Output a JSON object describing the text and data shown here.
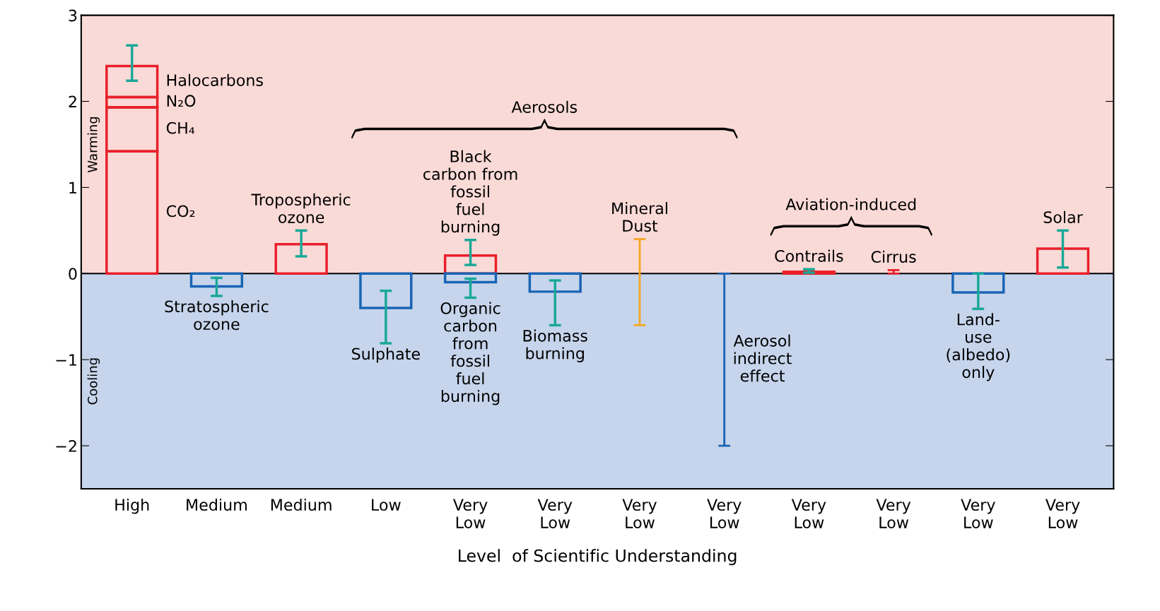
{
  "chart_data": {
    "type": "bar",
    "stacked": true,
    "xlabel": "Level  of Scientific Understanding",
    "categories": [
      "High",
      "Medium",
      "Medium",
      "Low",
      "Very\nLow",
      "Very\nLow",
      "Very\nLow",
      "Very\nLow",
      "Very\nLow",
      "Very\nLow",
      "Very\nLow",
      "Very\nLow"
    ],
    "series": [
      {
        "name": "CO₂",
        "color": "#e8202a",
        "values": [
          1.42,
          null,
          null,
          null,
          null,
          null,
          null,
          null,
          null,
          null,
          null,
          null
        ]
      },
      {
        "name": "CH₄",
        "color": "#e8202a",
        "values": [
          0.51,
          null,
          null,
          null,
          null,
          null,
          null,
          null,
          null,
          null,
          null,
          null
        ]
      },
      {
        "name": "N₂O",
        "color": "#e8202a",
        "values": [
          0.12,
          null,
          null,
          null,
          null,
          null,
          null,
          null,
          null,
          null,
          null,
          null
        ]
      },
      {
        "name": "Halocarbons",
        "color": "#e8202a",
        "values": [
          0.36,
          null,
          null,
          null,
          null,
          null,
          null,
          null,
          null,
          null,
          null,
          null
        ],
        "errors": [
          [
            2.24,
            2.65
          ],
          null,
          null,
          null,
          null,
          null,
          null,
          null,
          null,
          null,
          null,
          null
        ]
      },
      {
        "name": "Stratospheric\nozone",
        "color": "#1a64b4",
        "values": [
          null,
          -0.15,
          null,
          null,
          null,
          null,
          null,
          null,
          null,
          null,
          null,
          null
        ],
        "errors": [
          null,
          [
            -0.26,
            -0.05
          ],
          null,
          null,
          null,
          null,
          null,
          null,
          null,
          null,
          null,
          null
        ]
      },
      {
        "name": "Tropospheric\nozone",
        "color": "#e8202a",
        "values": [
          null,
          null,
          0.34,
          null,
          null,
          null,
          null,
          null,
          null,
          null,
          null,
          null
        ],
        "errors": [
          null,
          null,
          [
            0.2,
            0.5
          ],
          null,
          null,
          null,
          null,
          null,
          null,
          null,
          null,
          null
        ]
      },
      {
        "name": "Sulphate",
        "color": "#1a64b4",
        "values": [
          null,
          null,
          null,
          -0.4,
          null,
          null,
          null,
          null,
          null,
          null,
          null,
          null
        ],
        "errors": [
          null,
          null,
          null,
          [
            -0.81,
            -0.2
          ],
          null,
          null,
          null,
          null,
          null,
          null,
          null,
          null
        ]
      },
      {
        "name": "Black\ncarbon from\nfossil\nfuel\nburning",
        "color": "#e8202a",
        "values": [
          null,
          null,
          null,
          null,
          0.21,
          null,
          null,
          null,
          null,
          null,
          null,
          null
        ],
        "errors": [
          null,
          null,
          null,
          null,
          [
            0.1,
            0.39
          ],
          null,
          null,
          null,
          null,
          null,
          null,
          null
        ]
      },
      {
        "name": "Organic\ncarbon\nfrom\nfossil\nfuel\nburning",
        "color": "#1a64b4",
        "values": [
          null,
          null,
          null,
          null,
          -0.1,
          null,
          null,
          null,
          null,
          null,
          null,
          null
        ],
        "errors": [
          null,
          null,
          null,
          null,
          [
            -0.28,
            -0.06
          ],
          null,
          null,
          null,
          null,
          null,
          null,
          null
        ]
      },
      {
        "name": "Biomass\nburning",
        "color": "#1a64b4",
        "values": [
          null,
          null,
          null,
          null,
          null,
          -0.21,
          null,
          null,
          null,
          null,
          null,
          null
        ],
        "errors": [
          null,
          null,
          null,
          null,
          null,
          [
            -0.6,
            -0.08
          ],
          null,
          null,
          null,
          null,
          null,
          null
        ]
      },
      {
        "name": "Mineral\nDust",
        "color": "#f5a623",
        "base": [
          null,
          null,
          null,
          null,
          null,
          null,
          -0.6,
          null,
          null,
          null,
          null,
          null
        ],
        "values": [
          null,
          null,
          null,
          null,
          null,
          null,
          1.0,
          null,
          null,
          null,
          null,
          null
        ]
      },
      {
        "name": "Aerosol\nindirect\neffect",
        "color": "#1a64b4",
        "base": [
          null,
          null,
          null,
          null,
          null,
          null,
          null,
          -2,
          null,
          null,
          null,
          null
        ],
        "values": [
          null,
          null,
          null,
          null,
          null,
          null,
          null,
          2,
          null,
          null,
          null,
          null
        ]
      },
      {
        "name": "Contrails",
        "color": "#e8202a",
        "values": [
          null,
          null,
          null,
          null,
          null,
          null,
          null,
          null,
          0.02,
          null,
          null,
          null
        ],
        "errors": [
          null,
          null,
          null,
          null,
          null,
          null,
          null,
          null,
          [
            0.01,
            0.05
          ],
          null,
          null,
          null
        ]
      },
      {
        "name": "Cirrus",
        "color": "#e8202a",
        "base": [
          null,
          null,
          null,
          null,
          null,
          null,
          null,
          null,
          null,
          0,
          null,
          null
        ],
        "values": [
          null,
          null,
          null,
          null,
          null,
          null,
          null,
          null,
          null,
          0.04,
          null,
          null
        ]
      },
      {
        "name": "Land-\nuse\n(albedo)\nonly",
        "color": "#1a64b4",
        "values": [
          null,
          null,
          null,
          null,
          null,
          null,
          null,
          null,
          null,
          null,
          -0.22,
          null
        ],
        "errors": [
          null,
          null,
          null,
          null,
          null,
          null,
          null,
          null,
          null,
          null,
          [
            -0.41,
            0
          ],
          null
        ]
      },
      {
        "name": "Solar",
        "color": "#e8202a",
        "values": [
          null,
          null,
          null,
          null,
          null,
          null,
          null,
          null,
          null,
          null,
          null,
          0.29
        ],
        "errors": [
          null,
          null,
          null,
          null,
          null,
          null,
          null,
          null,
          null,
          null,
          null,
          [
            0.07,
            0.5
          ]
        ]
      }
    ],
    "ylim": [
      -2.5,
      3
    ],
    "yticks": [
      {
        "value": -2,
        "label": "−2"
      },
      {
        "value": -1,
        "label": "−1"
      },
      0,
      1,
      2,
      3
    ],
    "bands": [
      {
        "axis": "y",
        "from": 0,
        "to": 3,
        "label": "Warming",
        "color": "#fadad7"
      },
      {
        "axis": "y",
        "from": -2.5,
        "to": 0,
        "label": "Cooling",
        "color": "#c6d5ec"
      }
    ],
    "ref_lines": [
      {
        "axis": "y",
        "value": 0,
        "color": "#000000"
      }
    ],
    "annotations": [
      "Aerosols",
      "Aviation-induced"
    ],
    "grid": false,
    "legend": false
  }
}
